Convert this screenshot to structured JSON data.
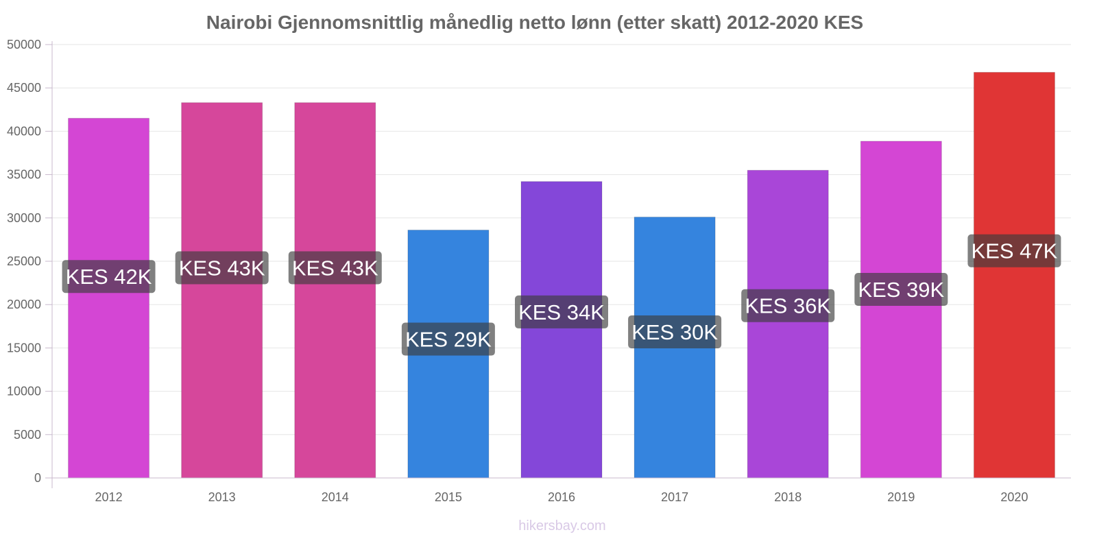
{
  "chart_data": {
    "type": "bar",
    "title": "Nairobi Gjennomsnittlig månedlig netto lønn (etter skatt) 2012-2020 KES",
    "xlabel": "",
    "ylabel": "",
    "ylim": [
      0,
      50000
    ],
    "yticks": [
      0,
      5000,
      10000,
      15000,
      20000,
      25000,
      30000,
      35000,
      40000,
      45000,
      50000
    ],
    "grid": true,
    "categories": [
      "2012",
      "2013",
      "2014",
      "2015",
      "2016",
      "2017",
      "2018",
      "2019",
      "2020"
    ],
    "values": [
      41500,
      43300,
      43300,
      28600,
      34200,
      30100,
      35500,
      38850,
      46800
    ],
    "data_labels": [
      "KES 42K",
      "KES 43K",
      "KES 43K",
      "KES 29K",
      "KES 34K",
      "KES 30K",
      "KES 36K",
      "KES 39K",
      "KES 47K"
    ],
    "colors": [
      "#d446d4",
      "#d6479b",
      "#d6479b",
      "#3584de",
      "#8447d9",
      "#3584de",
      "#a946d8",
      "#d446d4",
      "#e03535"
    ]
  },
  "footer": "hikersbay.com"
}
